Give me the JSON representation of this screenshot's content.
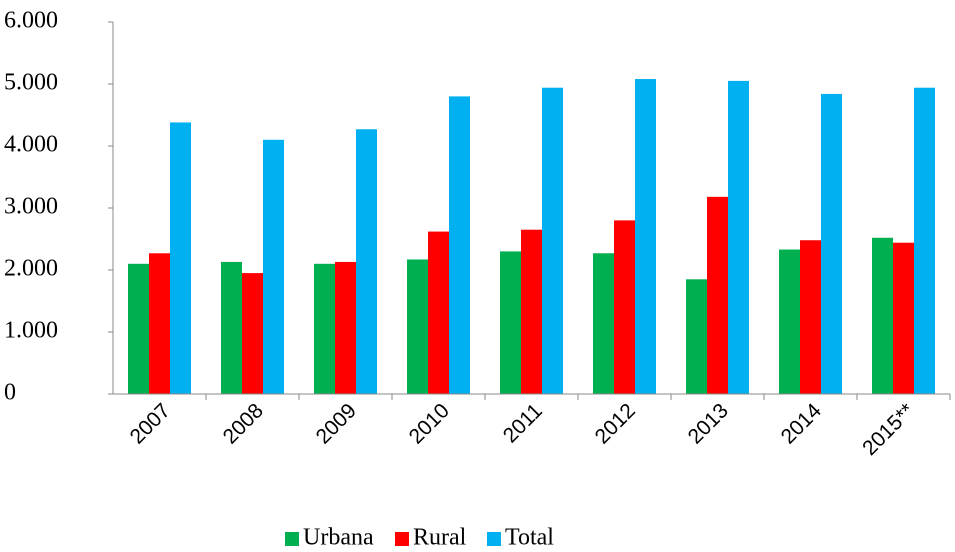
{
  "chart_data": {
    "type": "bar",
    "categories": [
      "2007",
      "2008",
      "2009",
      "2010",
      "2011",
      "2012",
      "2013",
      "2014",
      "2015**"
    ],
    "series": [
      {
        "name": "Urbana",
        "color": "#00b050",
        "values": [
          2100,
          2130,
          2100,
          2170,
          2300,
          2270,
          1850,
          2330,
          2520
        ]
      },
      {
        "name": "Rural",
        "color": "#ff0000",
        "values": [
          2270,
          1950,
          2130,
          2620,
          2650,
          2800,
          3180,
          2480,
          2440
        ]
      },
      {
        "name": "Total",
        "color": "#00b0f0",
        "values": [
          4380,
          4100,
          4270,
          4800,
          4940,
          5080,
          5050,
          4840,
          4940
        ]
      }
    ],
    "ylim": [
      0,
      6000
    ],
    "yticks": [
      0,
      {
        "value": 1000,
        "label": "1.000"
      },
      {
        "value": 2000,
        "label": "2.000"
      },
      {
        "value": 3000,
        "label": "3.000"
      },
      {
        "value": 4000,
        "label": "4.000"
      },
      {
        "value": 5000,
        "label": "5.000"
      },
      {
        "value": 6000,
        "label": "6.000"
      }
    ],
    "grid": false,
    "legend": "bottom"
  }
}
